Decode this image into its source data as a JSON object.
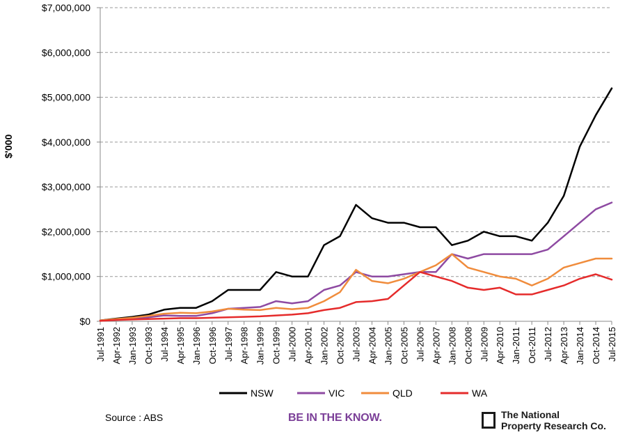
{
  "chart_data": {
    "type": "line",
    "ylabel": "$'000",
    "ylim": [
      0,
      7000000
    ],
    "y_ticks": [
      0,
      1000000,
      2000000,
      3000000,
      4000000,
      5000000,
      6000000,
      7000000
    ],
    "y_tick_labels": [
      "$0",
      "$1,000,000",
      "$2,000,000",
      "$3,000,000",
      "$4,000,000",
      "$5,000,000",
      "$6,000,000",
      "$7,000,000"
    ],
    "x_tick_labels": [
      "Jul-1991",
      "Apr-1992",
      "Jan-1993",
      "Oct-1993",
      "Jul-1994",
      "Apr-1995",
      "Jan-1996",
      "Oct-1996",
      "Jul-1997",
      "Apr-1998",
      "Jan-1999",
      "Oct-1999",
      "Jul-2000",
      "Apr-2001",
      "Jan-2002",
      "Oct-2002",
      "Jul-2003",
      "Apr-2004",
      "Jan-2005",
      "Oct-2005",
      "Jul-2006",
      "Apr-2007",
      "Jan-2008",
      "Oct-2008",
      "Jul-2009",
      "Apr-2010",
      "Jan-2011",
      "Oct-2011",
      "Jul-2012",
      "Apr-2013",
      "Jan-2014",
      "Oct-2014",
      "Jul-2015"
    ],
    "grid": "horizontal dashed",
    "legend_position": "bottom",
    "series": [
      {
        "name": "NSW",
        "color": "#000000",
        "values": [
          20000,
          60000,
          100000,
          150000,
          260000,
          300000,
          300000,
          450000,
          700000,
          700000,
          700000,
          1100000,
          1000000,
          1000000,
          1700000,
          1900000,
          2600000,
          2300000,
          2200000,
          2200000,
          2100000,
          2100000,
          1700000,
          1800000,
          2000000,
          1900000,
          1900000,
          1800000,
          2200000,
          2800000,
          3900000,
          4600000,
          5200000
        ]
      },
      {
        "name": "VIC",
        "color": "#8e4aa2",
        "values": [
          20000,
          40000,
          60000,
          90000,
          130000,
          120000,
          120000,
          180000,
          280000,
          300000,
          320000,
          450000,
          400000,
          450000,
          700000,
          800000,
          1100000,
          1000000,
          1000000,
          1050000,
          1100000,
          1100000,
          1500000,
          1400000,
          1500000,
          1500000,
          1500000,
          1500000,
          1600000,
          1900000,
          2200000,
          2500000,
          2650000
        ]
      },
      {
        "name": "QLD",
        "color": "#f08c3c",
        "values": [
          20000,
          50000,
          80000,
          120000,
          170000,
          190000,
          180000,
          220000,
          280000,
          260000,
          250000,
          300000,
          270000,
          300000,
          450000,
          650000,
          1150000,
          900000,
          850000,
          950000,
          1100000,
          1250000,
          1500000,
          1200000,
          1100000,
          1000000,
          950000,
          800000,
          950000,
          1200000,
          1300000,
          1400000,
          1400000
        ]
      },
      {
        "name": "WA",
        "color": "#e52b2b",
        "values": [
          10000,
          30000,
          40000,
          50000,
          60000,
          70000,
          70000,
          80000,
          90000,
          100000,
          110000,
          130000,
          150000,
          180000,
          250000,
          300000,
          430000,
          450000,
          500000,
          800000,
          1100000,
          1000000,
          900000,
          750000,
          700000,
          750000,
          600000,
          600000,
          700000,
          800000,
          950000,
          1050000,
          930000
        ]
      }
    ]
  },
  "footer": {
    "source": "Source : ABS",
    "tagline": "BE IN THE KNOW.",
    "logo_line1": "The National",
    "logo_line2": "Property Research Co."
  }
}
